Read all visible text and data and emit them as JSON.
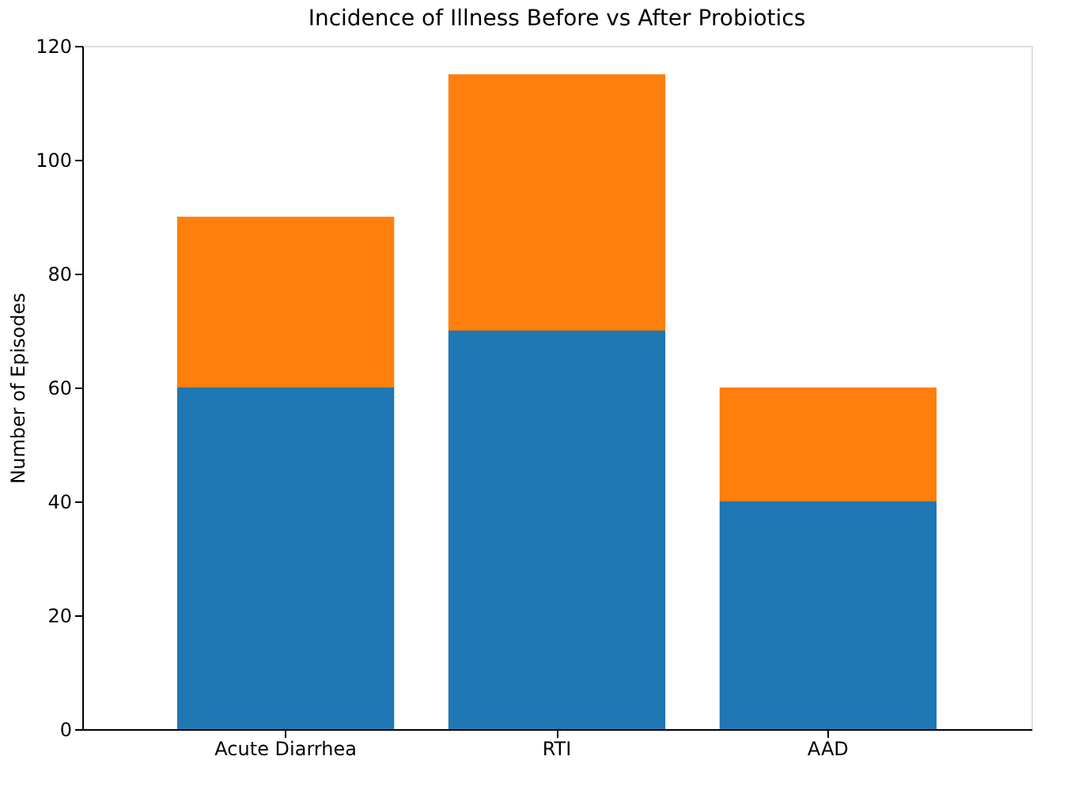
{
  "chart_data": {
    "type": "bar",
    "title": "Incidence of Illness Before vs After Probiotics",
    "ylabel": "Number of Episodes",
    "categories": [
      "Acute Diarrhea",
      "RTI",
      "AAD"
    ],
    "stacked": true,
    "series": [
      {
        "color": "#1f77b4",
        "values": [
          60,
          70,
          40
        ]
      },
      {
        "color": "#ff7f0e",
        "values": [
          30,
          45,
          20
        ]
      }
    ],
    "ylim": [
      0,
      120
    ],
    "yticks": [
      0,
      20,
      40,
      60,
      80,
      100,
      120
    ],
    "grid": false,
    "legend": false
  }
}
